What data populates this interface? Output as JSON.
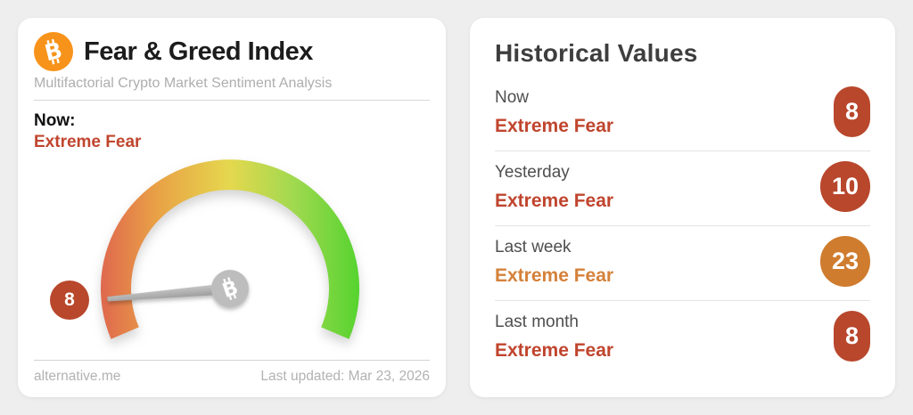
{
  "gauge_card": {
    "title": "Fear & Greed Index",
    "subtitle": "Multifactorial Crypto Market Sentiment Analysis",
    "now_label": "Now:",
    "now_value": "Extreme Fear",
    "footer": {
      "source": "alternative.me",
      "last_updated": "Last updated: Mar 23, 2026"
    }
  },
  "history_card": {
    "title": "Historical Values",
    "rows": [
      {
        "label": "Now",
        "value": "Extreme Fear",
        "score": "8",
        "value_color": "#c0452e",
        "badge_color": "#b8472c"
      },
      {
        "label": "Yesterday",
        "value": "Extreme Fear",
        "score": "10",
        "value_color": "#c0452e",
        "badge_color": "#b8472c"
      },
      {
        "label": "Last week",
        "value": "Extreme Fear",
        "score": "23",
        "value_color": "#d5813a",
        "badge_color": "#cf7c2f"
      },
      {
        "label": "Last month",
        "value": "Extreme Fear",
        "score": "8",
        "value_color": "#c0452e",
        "badge_color": "#b8472c"
      }
    ]
  },
  "chart_data": {
    "type": "gauge",
    "value": 8,
    "min": 0,
    "max": 100,
    "classification": "Extreme Fear",
    "arc_start_deg": 157,
    "arc_sweep_deg": 226,
    "gradient": [
      {
        "offset": "0%",
        "color": "#df684e"
      },
      {
        "offset": "22%",
        "color": "#e9a246"
      },
      {
        "offset": "50%",
        "color": "#e5d84e"
      },
      {
        "offset": "75%",
        "color": "#9fd94f"
      },
      {
        "offset": "100%",
        "color": "#56d32f"
      }
    ],
    "history": [
      {
        "period": "Now",
        "value": 8,
        "classification": "Extreme Fear"
      },
      {
        "period": "Yesterday",
        "value": 10,
        "classification": "Extreme Fear"
      },
      {
        "period": "Last week",
        "value": 23,
        "classification": "Extreme Fear"
      },
      {
        "period": "Last month",
        "value": 8,
        "classification": "Extreme Fear"
      }
    ]
  },
  "colors": {
    "page_bg": "#eeeeee",
    "card_bg": "#ffffff",
    "bitcoin_orange": "#f7931a",
    "title_text": "#1c1c1c",
    "muted_text": "#aeaeae",
    "extreme_fear_red": "#c0452e",
    "extreme_fear_orange": "#d5813a",
    "badge_red": "#b8472c",
    "badge_orange": "#cf7c2f",
    "needle_gray": "#ababab",
    "hub_gray": "#bdbdbd",
    "footer_text": "#b2b2b2",
    "history_title": "#3e3e3e",
    "row_label": "#4f4f4f"
  }
}
